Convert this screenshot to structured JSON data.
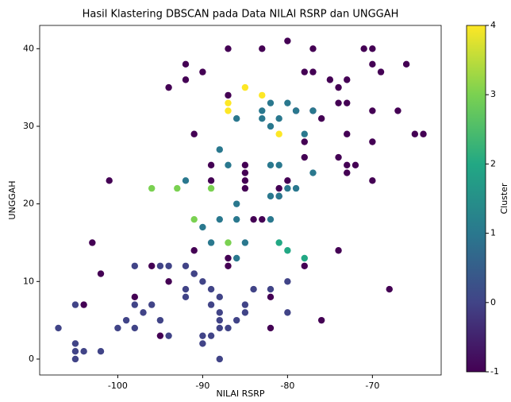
{
  "chart_data": {
    "type": "scatter",
    "title": "Hasil Klastering DBSCAN pada Data NILAI RSRP dan UNGGAH",
    "xlabel": "NILAI RSRP",
    "ylabel": "UNGGAH",
    "x": [
      -87,
      -83,
      -80,
      -77,
      -71,
      -70,
      -92,
      -78,
      -77,
      -70,
      -69,
      -66,
      -90,
      -92,
      -94,
      -75,
      -74,
      -73,
      -87,
      -74,
      -73,
      -79,
      -77,
      -76,
      -70,
      -67,
      -91,
      -73,
      -65,
      -64,
      -70,
      -78,
      -78,
      -74,
      -73,
      -72,
      -73,
      -89,
      -85,
      -85,
      -85,
      -85,
      -89,
      -80,
      -81,
      -70,
      -101,
      -81,
      -84,
      -83,
      -103,
      -91,
      -87,
      -87,
      -78,
      -74,
      -102,
      -96,
      -94,
      -91,
      -82,
      -68,
      -104,
      -98,
      -95,
      -82,
      -76,
      -107,
      -105,
      -105,
      -105,
      -104,
      -105,
      -102,
      -100,
      -99,
      -98,
      -98,
      -97,
      -96,
      -95,
      -94,
      -95,
      -94,
      -92,
      -98,
      -92,
      -92,
      -90,
      -89,
      -88,
      -88,
      -89,
      -88,
      -88,
      -87,
      -86,
      -85,
      -85,
      -84,
      -82,
      -80,
      -80,
      -90,
      -90,
      -89,
      -88,
      -91,
      -82,
      -83,
      -83,
      -80,
      -79,
      -77,
      -82,
      -81,
      -86,
      -78,
      -88,
      -87,
      -82,
      -81,
      -77,
      -80,
      -82,
      -81,
      -79,
      -92,
      -86,
      -88,
      -86,
      -82,
      -90,
      -89,
      -85,
      -86,
      -81,
      -80,
      -78,
      -96,
      -93,
      -89,
      -91,
      -87,
      -85,
      -87,
      -87,
      -83,
      -81
    ],
    "y": [
      40,
      40,
      41,
      40,
      40,
      40,
      38,
      37,
      37,
      38,
      37,
      38,
      37,
      36,
      35,
      36,
      35,
      36,
      34,
      33,
      33,
      32,
      32,
      31,
      32,
      32,
      29,
      29,
      29,
      29,
      28,
      28,
      26,
      26,
      25,
      25,
      24,
      25,
      25,
      24,
      23,
      22,
      23,
      23,
      22,
      23,
      23,
      21,
      18,
      18,
      15,
      14,
      13,
      12,
      12,
      14,
      11,
      12,
      10,
      11,
      8,
      9,
      7,
      8,
      3,
      4,
      5,
      4,
      7,
      2,
      1,
      1,
      0,
      1,
      4,
      5,
      4,
      7,
      6,
      7,
      5,
      3,
      12,
      12,
      12,
      12,
      9,
      8,
      10,
      7,
      6,
      8,
      9,
      5,
      4,
      4,
      5,
      6,
      7,
      9,
      9,
      10,
      6,
      3,
      2,
      3,
      0,
      11,
      33,
      32,
      31,
      33,
      32,
      32,
      30,
      31,
      31,
      29,
      27,
      25,
      25,
      25,
      24,
      22,
      21,
      21,
      22,
      23,
      20,
      18,
      18,
      18,
      17,
      15,
      15,
      13,
      15,
      14,
      13,
      22,
      22,
      22,
      18,
      15,
      35,
      33,
      32,
      34,
      29
    ],
    "cluster": [
      -1,
      -1,
      -1,
      -1,
      -1,
      -1,
      -1,
      -1,
      -1,
      -1,
      -1,
      -1,
      -1,
      -1,
      -1,
      -1,
      -1,
      -1,
      -1,
      -1,
      -1,
      -1,
      -1,
      -1,
      -1,
      -1,
      -1,
      -1,
      -1,
      -1,
      -1,
      -1,
      -1,
      -1,
      -1,
      -1,
      -1,
      -1,
      -1,
      -1,
      -1,
      -1,
      -1,
      -1,
      -1,
      -1,
      -1,
      -1,
      -1,
      -1,
      -1,
      -1,
      -1,
      -1,
      -1,
      -1,
      -1,
      -1,
      -1,
      -1,
      -1,
      -1,
      -1,
      -1,
      -1,
      -1,
      -1,
      0,
      0,
      0,
      0,
      0,
      0,
      0,
      0,
      0,
      0,
      0,
      0,
      0,
      0,
      0,
      0,
      0,
      0,
      0,
      0,
      0,
      0,
      0,
      0,
      0,
      0,
      0,
      0,
      0,
      0,
      0,
      0,
      0,
      0,
      0,
      0,
      0,
      0,
      0,
      0,
      0,
      1,
      1,
      1,
      1,
      1,
      1,
      1,
      1,
      1,
      1,
      1,
      1,
      1,
      1,
      1,
      1,
      1,
      1,
      1,
      1,
      1,
      1,
      1,
      1,
      1,
      1,
      1,
      1,
      2,
      2,
      2,
      3,
      3,
      3,
      3,
      3,
      4,
      4,
      4,
      4,
      4
    ],
    "xlim": [
      -109.2,
      -61.9
    ],
    "ylim": [
      -2.05,
      43
    ],
    "xticks": [
      -100,
      -90,
      -80,
      -70
    ],
    "yticks": [
      0,
      10,
      20,
      30,
      40
    ],
    "colorbar": {
      "label": "Cluster",
      "lim": [
        -1,
        4
      ],
      "ticks": [
        -1,
        0,
        1,
        2,
        3,
        4
      ],
      "colors": [
        "#440154",
        "#414487",
        "#2a788e",
        "#22a884",
        "#7ad151",
        "#fde725"
      ]
    }
  }
}
